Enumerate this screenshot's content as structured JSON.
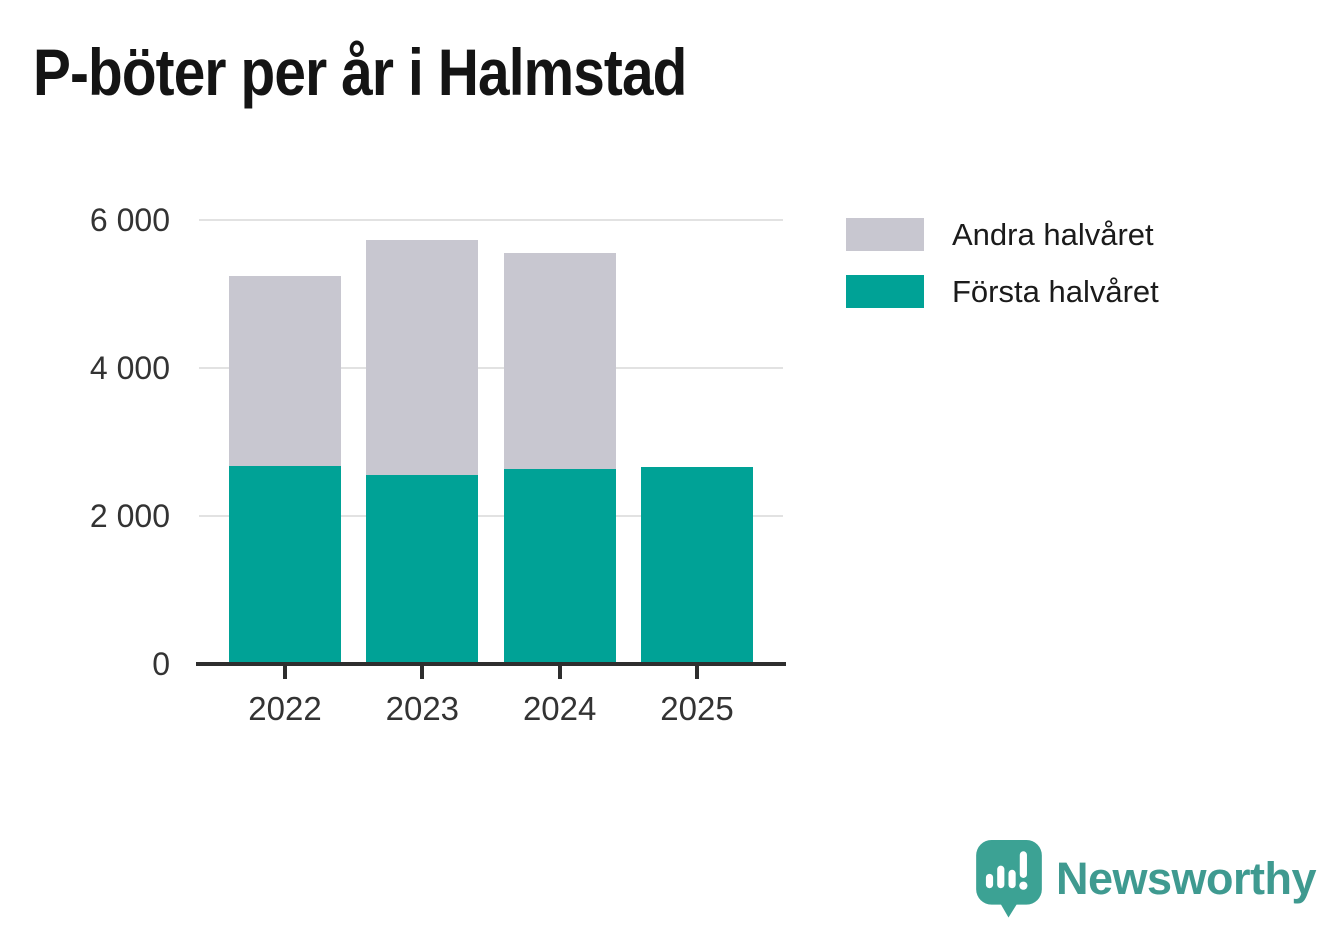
{
  "title": "P-böter per år i Halmstad",
  "legend": {
    "items": [
      {
        "label": "Andra halvåret",
        "color": "#c8c7d0"
      },
      {
        "label": "Första halvåret",
        "color": "#00a296"
      }
    ]
  },
  "chart_data": {
    "type": "bar",
    "stacked": true,
    "title": "P-böter per år i Halmstad",
    "categories": [
      "2022",
      "2023",
      "2024",
      "2025"
    ],
    "series": [
      {
        "name": "Första halvåret",
        "color": "#00a296",
        "values": [
          2680,
          2560,
          2640,
          2660
        ]
      },
      {
        "name": "Andra halvåret",
        "color": "#c8c7d0",
        "values": [
          2570,
          3170,
          2910,
          0
        ]
      }
    ],
    "totals": [
      5250,
      5730,
      5550,
      2660
    ],
    "xlabel": "",
    "ylabel": "",
    "ylim": [
      0,
      6000
    ],
    "yticks": [
      0,
      2000,
      4000,
      6000
    ],
    "ytick_labels": [
      "0",
      "2 000",
      "4 000",
      "6 000"
    ],
    "grid": true,
    "legend_position": "top-right"
  },
  "branding": {
    "logo_text": "Newsworthy",
    "wordmark_color": "#3f9a90",
    "icon_color": "#3ca294",
    "icon_name": "newsworthy-chart-bubble-icon"
  },
  "colors": {
    "background": "#ffffff",
    "title_text": "#141414",
    "axis_text": "#333333",
    "axis_line": "#2e2e2e",
    "gridline": "#e2e2e2",
    "first_half_fill": "#00a296",
    "second_half_fill": "#c8c7d0"
  }
}
